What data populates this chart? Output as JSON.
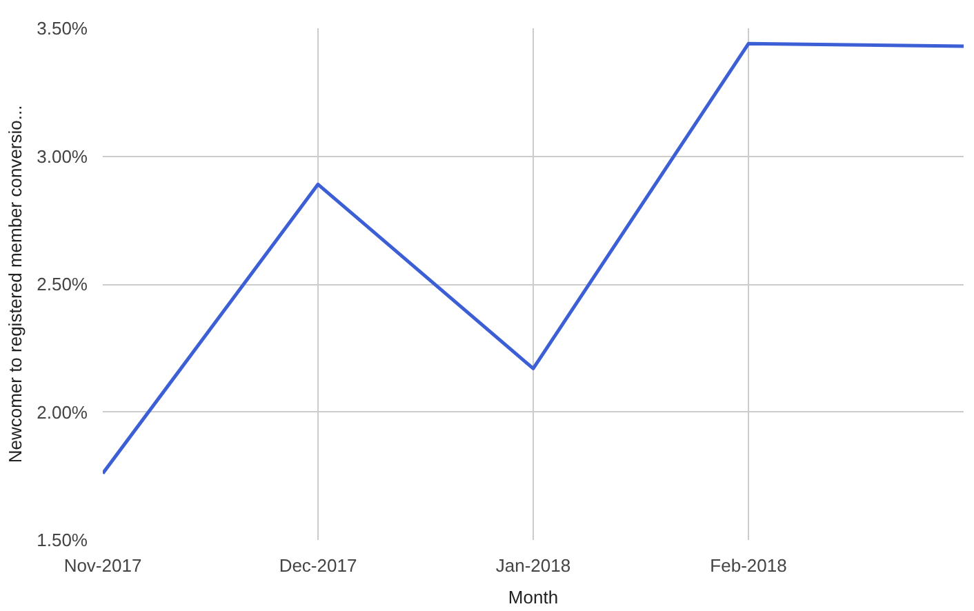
{
  "chart_data": {
    "type": "line",
    "xlabel": "Month",
    "ylabel": "Newcomer to registered member conversio...",
    "categories": [
      "Nov-2017",
      "Dec-2017",
      "Jan-2018",
      "Feb-2018",
      null
    ],
    "series": [
      {
        "color": "#3c5fd6",
        "values": [
          1.76,
          2.89,
          2.17,
          3.44,
          3.43
        ]
      }
    ],
    "ylim": [
      1.5,
      3.5
    ],
    "yticks": [
      {
        "value": 1.5,
        "label": "1.50%"
      },
      {
        "value": 2.0,
        "label": "2.00%"
      },
      {
        "value": 2.5,
        "label": "2.50%"
      },
      {
        "value": 3.0,
        "label": "3.00%"
      },
      {
        "value": 3.5,
        "label": "3.50%"
      }
    ],
    "grid": true,
    "marker": "none",
    "line_style": "solid"
  }
}
